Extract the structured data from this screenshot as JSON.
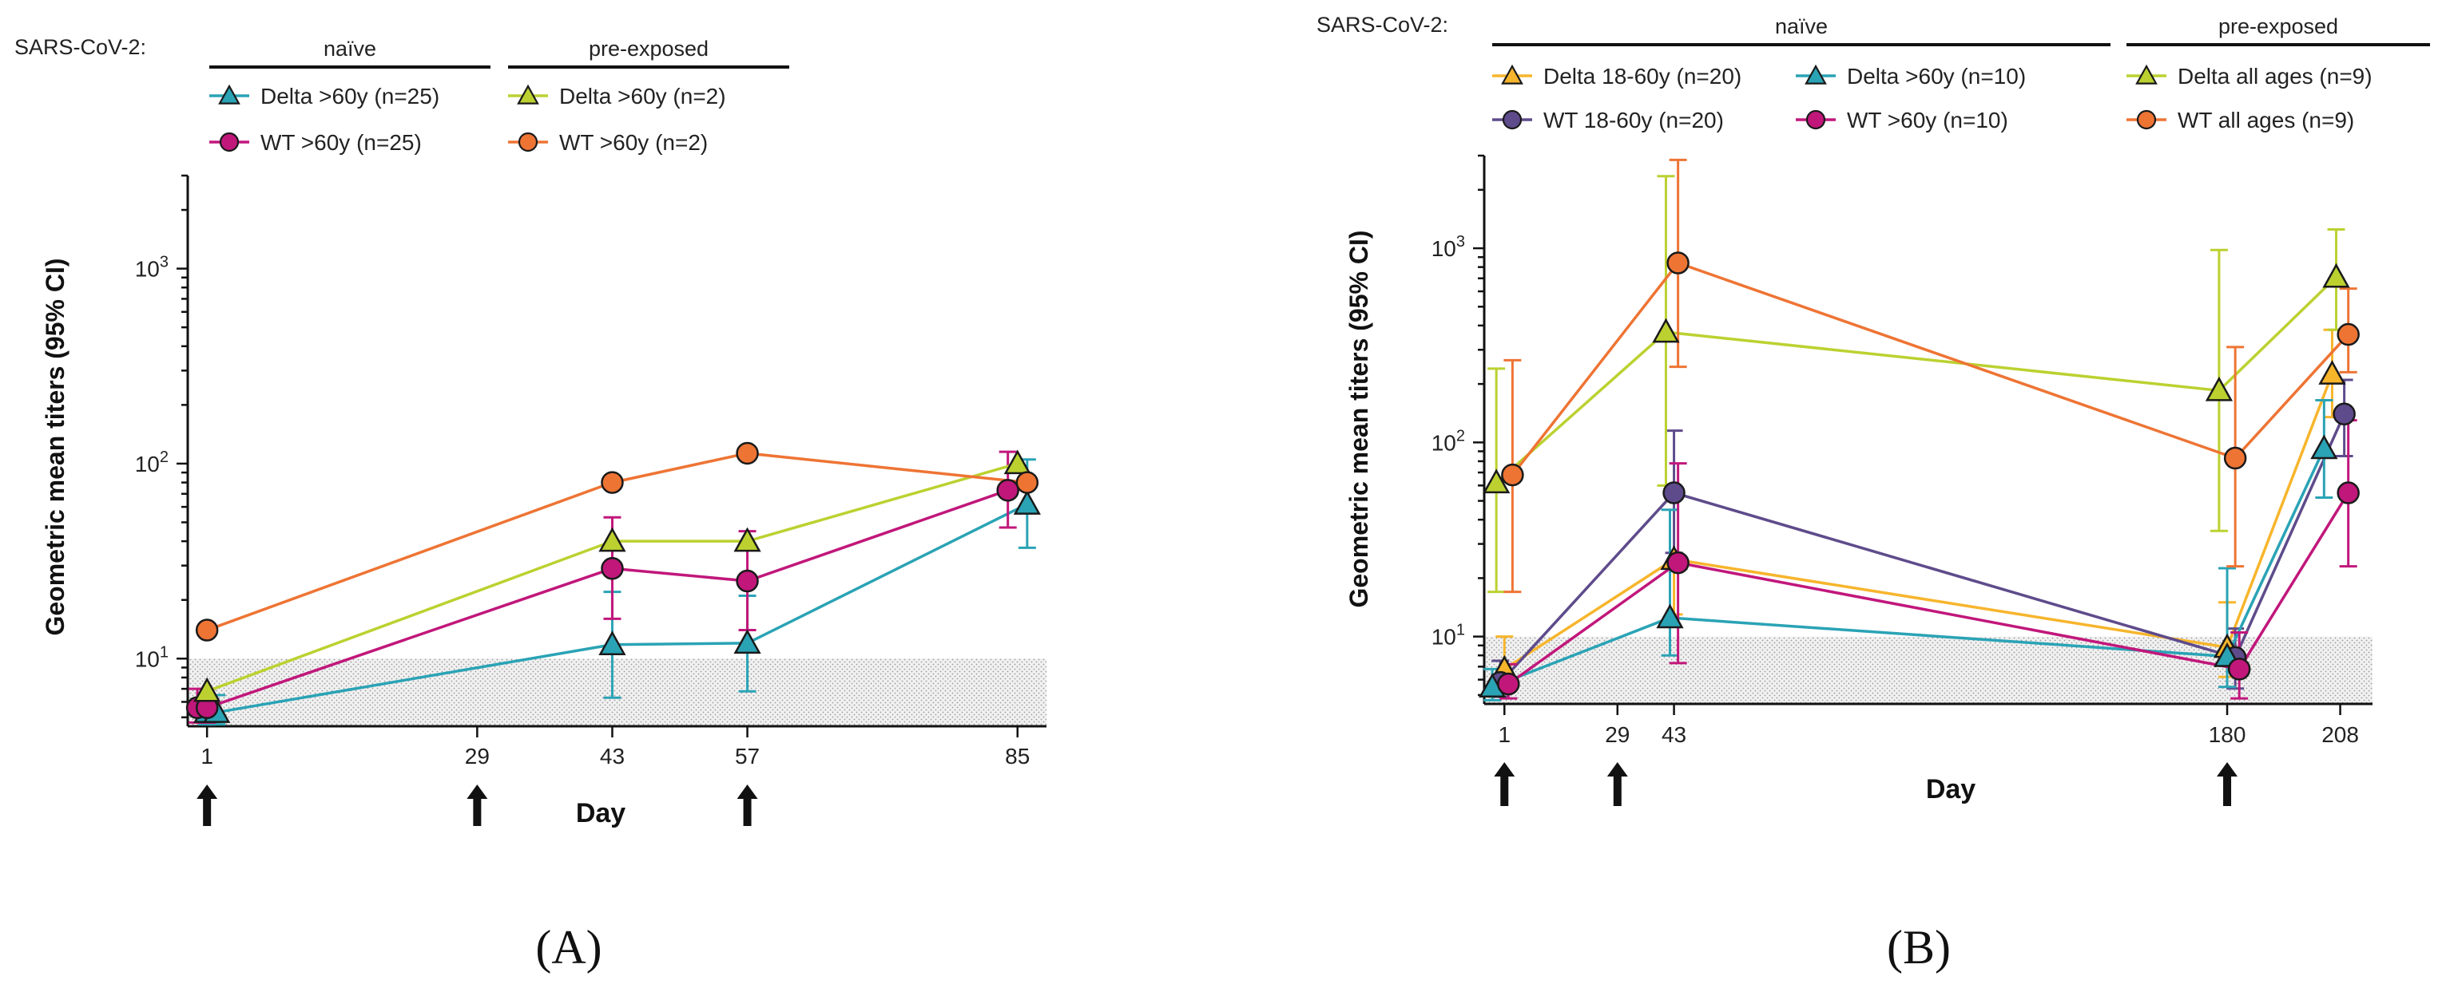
{
  "colors": {
    "delta_18_60": "#f7b52c",
    "wt_18_60": "#5e4b8b",
    "delta_60": "#2aa3b5",
    "wt_60": "#c1177b",
    "delta_pre": "#bcd130",
    "wt_pre": "#ee7434",
    "axis": "#111111",
    "shade": "#e6e6e6"
  },
  "chart_data": [
    {
      "type": "line",
      "panel_label": "(A)",
      "group_label": "SARS-CoV-2:",
      "naive_label": "naïve",
      "pre_label": "pre-exposed",
      "xlabel": "Day",
      "ylabel": "Geometric mean titers (95% CI)",
      "yscale": "log",
      "ylim": [
        4.5,
        3000
      ],
      "xlim": [
        -1,
        88
      ],
      "x_ticks": [
        1,
        29,
        43,
        57,
        85
      ],
      "x_tick_labels": [
        "1",
        "29",
        "43",
        "57",
        "85"
      ],
      "y_tick_labels": [
        {
          "base": "10",
          "exp": "1",
          "value": 10
        },
        {
          "base": "10",
          "exp": "2",
          "value": 100
        },
        {
          "base": "10",
          "exp": "3",
          "value": 1000
        }
      ],
      "lloq_shade_max": 10,
      "arrows": [
        1,
        29,
        57
      ],
      "series": [
        {
          "name": "Delta >60y (n=25)",
          "legend_column": "naïve",
          "marker": "triangle",
          "color": "#2aa3b5",
          "x": [
            1,
            2,
            43,
            57,
            86
          ],
          "values": [
            5.3,
            5.3,
            11.8,
            12,
            62
          ],
          "ci_low": [
            4.6,
            4.6,
            6.3,
            6.8,
            37
          ],
          "ci_high": [
            6.5,
            6.5,
            22,
            21,
            105
          ]
        },
        {
          "name": "WT >60y (n=25)",
          "legend_column": "naïve",
          "marker": "circle",
          "color": "#c1177b",
          "x": [
            0,
            1,
            43,
            57,
            84
          ],
          "values": [
            5.6,
            5.6,
            29,
            25,
            73
          ],
          "ci_low": [
            4.7,
            4.7,
            16,
            14,
            47
          ],
          "ci_high": [
            7,
            7,
            53,
            45,
            115
          ]
        },
        {
          "name": "Delta >60y (n=2)",
          "legend_column": "pre-exposed",
          "marker": "triangle",
          "color": "#bcd130",
          "x": [
            1,
            43,
            57,
            85
          ],
          "values": [
            6.8,
            40,
            40,
            100
          ],
          "ci_low": null,
          "ci_high": null
        },
        {
          "name": "WT >60y (n=2)",
          "legend_column": "pre-exposed",
          "marker": "circle",
          "color": "#ee7434",
          "x": [
            1,
            43,
            57,
            86
          ],
          "values": [
            14,
            80,
            113,
            80
          ],
          "ci_low": null,
          "ci_high": null
        }
      ]
    },
    {
      "type": "line",
      "panel_label": "(B)",
      "group_label": "SARS-CoV-2:",
      "naive_label": "naïve",
      "pre_label": "pre-exposed",
      "xlabel": "Day",
      "ylabel": "Geometric mean titers (95% CI)",
      "yscale": "log",
      "ylim": [
        4.5,
        3000
      ],
      "xlim": [
        -4,
        216
      ],
      "x_ticks": [
        1,
        29,
        43,
        180,
        208
      ],
      "x_tick_labels": [
        "1",
        "29",
        "43",
        "180",
        "208"
      ],
      "y_tick_labels": [
        {
          "base": "10",
          "exp": "1",
          "value": 10
        },
        {
          "base": "10",
          "exp": "2",
          "value": 100
        },
        {
          "base": "10",
          "exp": "3",
          "value": 1000
        }
      ],
      "lloq_shade_max": 10,
      "arrows": [
        1,
        29,
        180
      ],
      "series": [
        {
          "name": "Delta 18-60y (n=20)",
          "legend_column": "naïve",
          "marker": "triangle",
          "color": "#f7b52c",
          "x": [
            1,
            43,
            180,
            206
          ],
          "values": [
            6.8,
            25,
            8.8,
            225
          ],
          "ci_low": [
            5.2,
            13,
            6.2,
            135
          ],
          "ci_high": [
            10,
            55,
            15,
            380
          ]
        },
        {
          "name": "WT 18-60y (n=20)",
          "legend_column": "naïve",
          "marker": "circle",
          "color": "#5e4b8b",
          "x": [
            0,
            43,
            182,
            209
          ],
          "values": [
            5.8,
            55,
            7.8,
            140
          ],
          "ci_low": [
            4.9,
            27,
            5.4,
            85
          ],
          "ci_high": [
            7.5,
            115,
            11,
            210
          ]
        },
        {
          "name": "Delta >60y (n=10)",
          "legend_column": "naïve",
          "marker": "triangle",
          "color": "#2aa3b5",
          "x": [
            -2,
            42,
            180,
            204
          ],
          "values": [
            5.5,
            12.5,
            7.9,
            93
          ],
          "ci_low": [
            4.7,
            8,
            5.5,
            52
          ],
          "ci_high": [
            6.8,
            45,
            22.5,
            165
          ]
        },
        {
          "name": "WT >60y (n=10)",
          "legend_column": "naïve",
          "marker": "circle",
          "color": "#c1177b",
          "x": [
            2,
            44,
            183,
            210
          ],
          "values": [
            5.7,
            24,
            6.8,
            55
          ],
          "ci_low": [
            4.8,
            7.3,
            4.8,
            23
          ],
          "ci_high": [
            7.2,
            78,
            10.5,
            130
          ]
        },
        {
          "name": "Delta all ages (n=9)",
          "legend_column": "pre-exposed",
          "marker": "triangle",
          "color": "#bcd130",
          "x": [
            -1,
            41,
            178,
            207
          ],
          "values": [
            62,
            370,
            185,
            710
          ],
          "ci_low": [
            17,
            60,
            35,
            380
          ],
          "ci_high": [
            240,
            2350,
            980,
            1250
          ]
        },
        {
          "name": "WT all ages (n=9)",
          "legend_column": "pre-exposed",
          "marker": "circle",
          "color": "#ee7434",
          "x": [
            3,
            44,
            182,
            210
          ],
          "values": [
            68,
            840,
            83,
            360
          ],
          "ci_low": [
            17,
            245,
            23,
            230
          ],
          "ci_high": [
            265,
            2850,
            310,
            620
          ]
        }
      ]
    }
  ]
}
